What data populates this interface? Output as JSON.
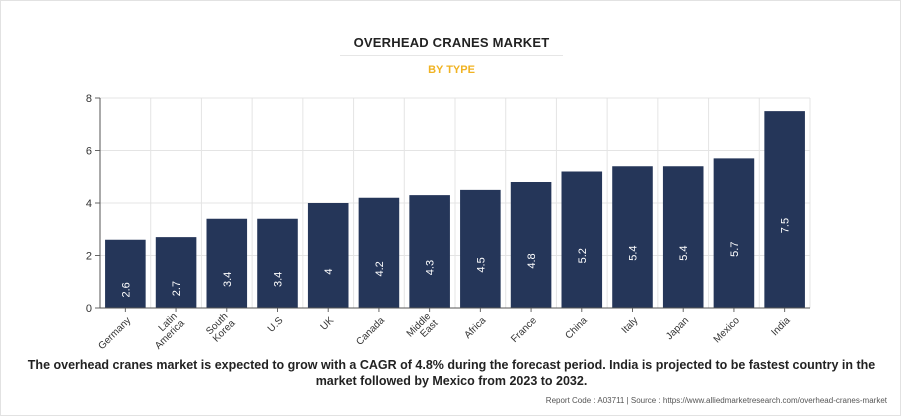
{
  "chart_data": {
    "type": "bar",
    "title": "OVERHEAD CRANES MARKET",
    "subtitle": "BY TYPE",
    "categories": [
      [
        "Germany"
      ],
      [
        "Latin",
        "America"
      ],
      [
        "South",
        "Korea"
      ],
      [
        "U.S"
      ],
      [
        "UK"
      ],
      [
        "Canada"
      ],
      [
        "Middle",
        "East"
      ],
      [
        "Africa"
      ],
      [
        "France"
      ],
      [
        "China"
      ],
      [
        "Italy"
      ],
      [
        "Japan"
      ],
      [
        "Mexico"
      ],
      [
        "India"
      ]
    ],
    "values": [
      2.6,
      2.7,
      3.4,
      3.4,
      4,
      4.2,
      4.3,
      4.5,
      4.8,
      5.2,
      5.4,
      5.4,
      5.7,
      7.5
    ],
    "value_labels": [
      "2.6",
      "2.7",
      "3.4",
      "3.4",
      "4",
      "4.2",
      "4.3",
      "4.5",
      "4.8",
      "5.2",
      "5.4",
      "5.4",
      "5.7",
      "7.5"
    ],
    "ylim": [
      0,
      8
    ],
    "yticks": [
      0,
      2,
      4,
      6,
      8
    ],
    "xlabel": "",
    "ylabel": "",
    "grid": true,
    "bar_color": "#253659"
  },
  "caption": "The overhead cranes market is expected to grow with a CAGR of 4.8% during the forecast period. India is projected to be fastest country in the market followed by Mexico from 2023 to 2032.",
  "footer": "Report Code : A03711  |  Source : https://www.alliedmarketresearch.com/overhead-cranes-market"
}
